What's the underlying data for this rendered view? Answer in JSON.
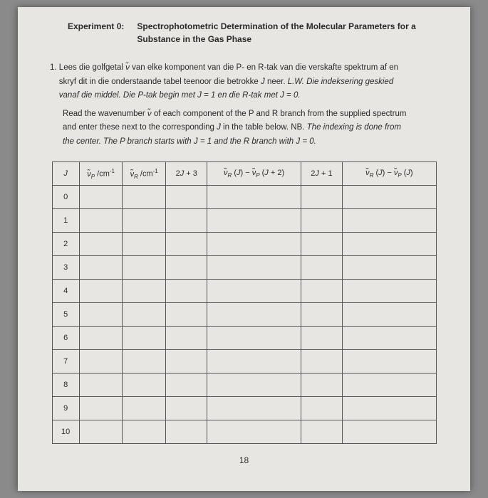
{
  "header": {
    "label": "Experiment 0:",
    "title": "Spectrophotometric Determination of the Molecular Parameters for a Substance in the Gas Phase"
  },
  "instruction": {
    "number": "1.",
    "afrikaans_line1": "Lees die golfgetal ν̃ van elke komponent van die P- en R-tak van die verskafte spektrum af en",
    "afrikaans_line2": "skryf dit in die onderstaande tabel teenoor die betrokke J neer. L.W. Die indeksering geskied",
    "afrikaans_line3": "vanaf die middel. Die P-tak begin met J = 1 en die R-tak met J = 0.",
    "english_line1": "Read the wavenumber ν̃ of each component of the P and R branch from the supplied spectrum",
    "english_line2": "and enter these next to the corresponding J in the table below. NB. The indexing is done from",
    "english_line3": "the center. The P branch starts with J = 1 and the R branch with J = 0."
  },
  "table": {
    "columns": {
      "c1": "J",
      "c2_html": "ν̃ₚ /cm⁻¹",
      "c3_html": "ν̃ᵣ /cm⁻¹",
      "c4": "2J + 3",
      "c5_html": "ν̃ᵣ (J) − ν̃ₚ (J + 2)",
      "c6": "2J + 1",
      "c7_html": "ν̃ᵣ (J) − ν̃ₚ (J)"
    },
    "j_values": [
      "0",
      "1",
      "2",
      "3",
      "4",
      "5",
      "6",
      "7",
      "8",
      "9",
      "10"
    ]
  },
  "pagenum": "18"
}
